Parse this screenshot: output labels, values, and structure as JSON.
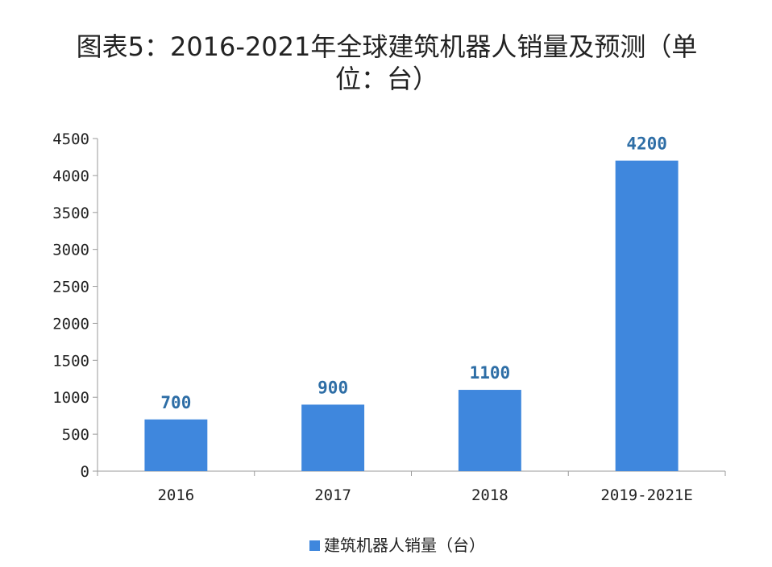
{
  "chart_data": {
    "type": "bar",
    "title": "图表5：2016-2021年全球建筑机器人销量及预测（单位：台）",
    "title_lines": [
      "图表5：2016-2021年全球建筑机器人销量及预测（单",
      "位：台）"
    ],
    "categories": [
      "2016",
      "2017",
      "2018",
      "2019-2021E"
    ],
    "series": [
      {
        "name": "建筑机器人销量（台）",
        "values": [
          700,
          900,
          1100,
          4200
        ],
        "color": "#3f87dd"
      }
    ],
    "data_labels": [
      "700",
      "900",
      "1100",
      "4200"
    ],
    "y_ticks": [
      0,
      500,
      1000,
      1500,
      2000,
      2500,
      3000,
      3500,
      4000,
      4500
    ],
    "ylim": [
      0,
      4500
    ],
    "xlabel": "",
    "ylabel": "",
    "grid": false,
    "legend_position": "bottom"
  }
}
